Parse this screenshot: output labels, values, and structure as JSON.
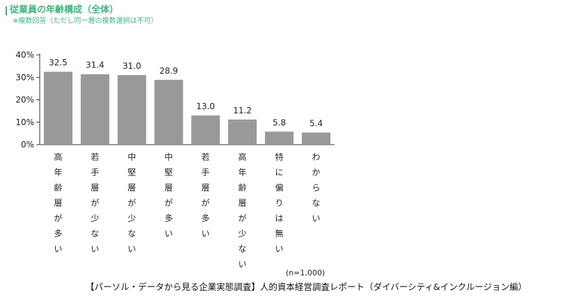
{
  "header": {
    "title": "従業員の年齢構成（全体）",
    "subtitle": "※複数回答（ただし同一層の複数選択は不可）"
  },
  "chart_data": {
    "type": "bar",
    "categories": [
      "高年齢層が多い",
      "若手層が少ない",
      "中堅層が少ない",
      "中堅層が多い",
      "若手層が多い",
      "高年齢層が少ない",
      "特に偏りは無い",
      "わからない"
    ],
    "values": [
      32.5,
      31.4,
      31.0,
      28.9,
      13.0,
      11.2,
      5.8,
      5.4
    ],
    "value_labels": [
      "32.5",
      "31.4",
      "31.0",
      "28.9",
      "13.0",
      "11.2",
      "5.8",
      "5.4"
    ],
    "ylim": [
      0,
      40
    ],
    "yticks": [
      "0%",
      "10%",
      "20%",
      "30%",
      "40%"
    ],
    "bar_color": "#999999",
    "title": "",
    "xlabel": "",
    "ylabel": ""
  },
  "footer": {
    "n_note": "(n=1,000)",
    "source": "【パーソル・データから見る企業実態調査】人的資本経営調査レポート（ダイバーシティ&インクルージョン編）"
  }
}
